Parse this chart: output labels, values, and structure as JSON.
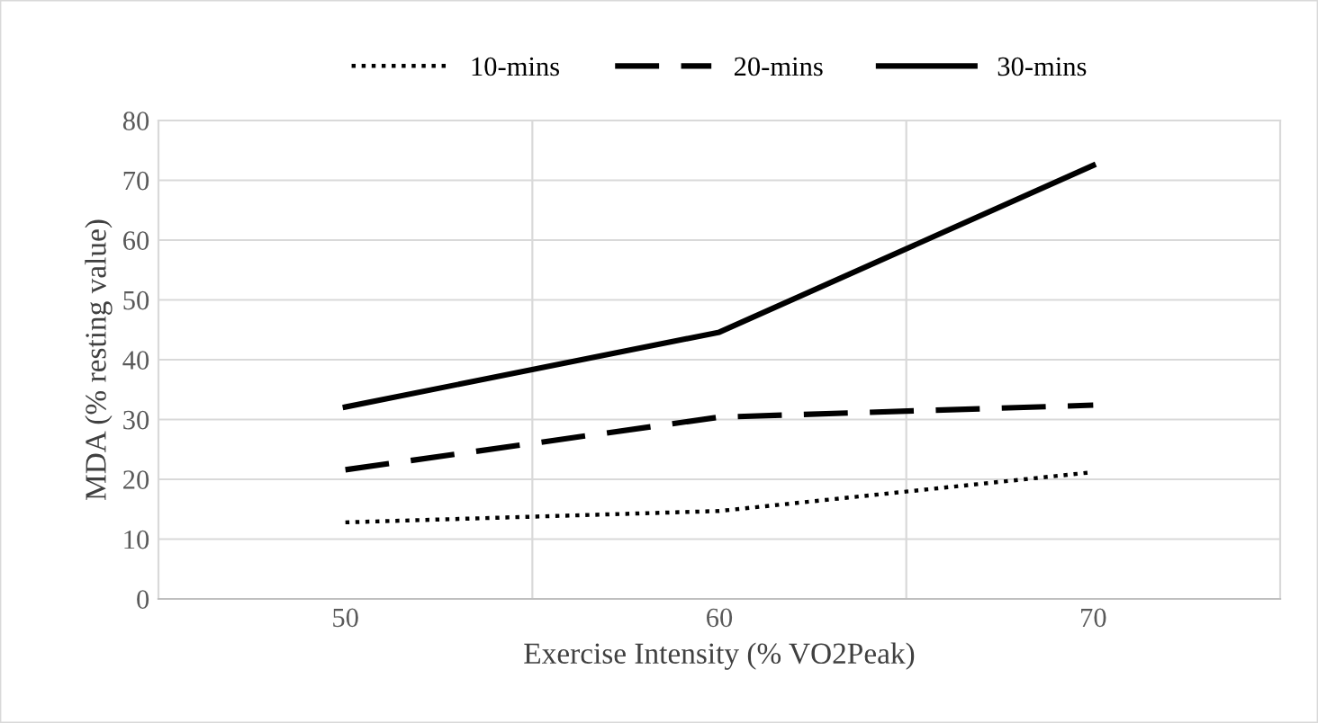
{
  "chart_data": {
    "type": "line",
    "xlabel": "Exercise Intensity (% VO2Peak)",
    "ylabel": "MDA (% resting value)",
    "categories": [
      "50",
      "60",
      "70"
    ],
    "series": [
      {
        "name": "10-mins",
        "color": "#000000",
        "line_style": "dotted",
        "values": [
          12.8,
          14.7,
          21.2
        ]
      },
      {
        "name": "20-mins",
        "color": "#000000",
        "line_style": "dashed",
        "values": [
          21.6,
          30.4,
          32.4
        ]
      },
      {
        "name": "30-mins",
        "color": "#000000",
        "line_style": "solid",
        "values": [
          32.1,
          44.6,
          72.5
        ]
      }
    ],
    "ylim": [
      0,
      80
    ],
    "yticks": [
      0,
      10,
      20,
      30,
      40,
      50,
      60,
      70,
      80
    ],
    "grid": true,
    "legend": "top",
    "marker": "none"
  }
}
